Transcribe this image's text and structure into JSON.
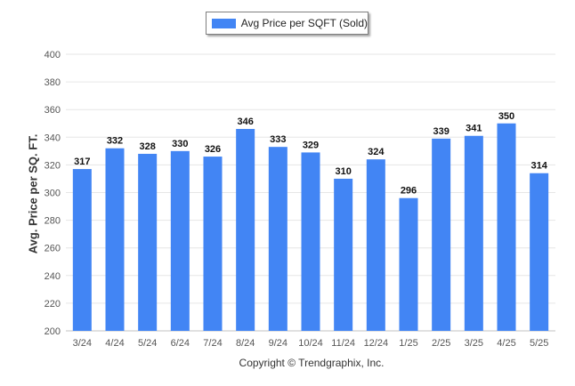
{
  "chart_data": {
    "type": "bar",
    "categories": [
      "3/24",
      "4/24",
      "5/24",
      "6/24",
      "7/24",
      "8/24",
      "9/24",
      "10/24",
      "11/24",
      "12/24",
      "1/25",
      "2/25",
      "3/25",
      "4/25",
      "5/25"
    ],
    "series": [
      {
        "name": "Avg Price per SQFT (Sold)",
        "values": [
          317,
          332,
          328,
          330,
          326,
          346,
          333,
          329,
          310,
          324,
          296,
          339,
          341,
          350,
          314
        ]
      }
    ],
    "ylabel": "Avg. Price per SQ. FT.",
    "xlabel": "",
    "ylim": [
      200,
      400
    ],
    "yticks": [
      200,
      220,
      240,
      260,
      280,
      300,
      320,
      340,
      360,
      380,
      400
    ],
    "grid": true,
    "legend_position": "top-center",
    "data_labels": true,
    "bar_color": "#4285f4",
    "footer": "Copyright © Trendgraphix, Inc."
  }
}
